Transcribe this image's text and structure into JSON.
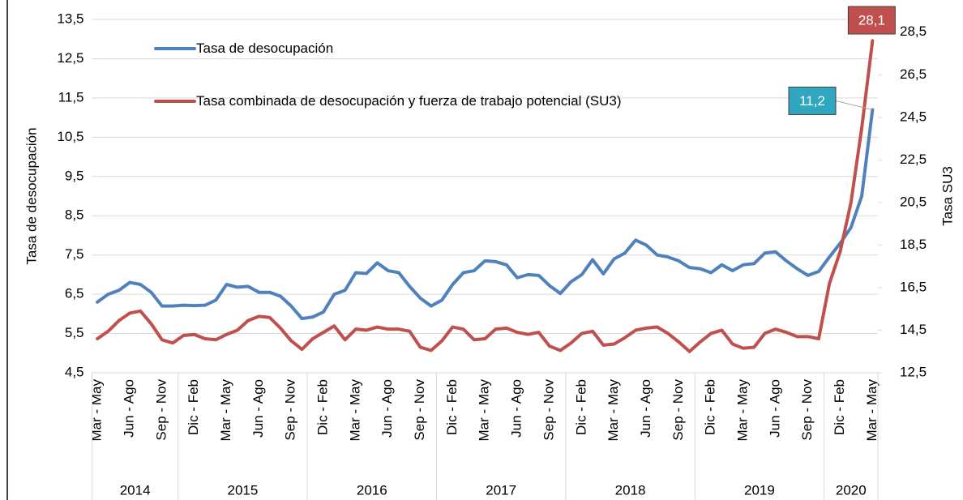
{
  "chart_data": {
    "type": "line",
    "categories": [
      "Mar - May",
      null,
      null,
      "Jun - Ago",
      null,
      null,
      "Sep - Nov",
      null,
      null,
      "Dic - Feb",
      null,
      null,
      "Mar - May",
      null,
      null,
      "Jun - Ago",
      null,
      null,
      "Sep - Nov",
      null,
      null,
      "Dic - Feb",
      null,
      null,
      "Mar - May",
      null,
      null,
      "Jun - Ago",
      null,
      null,
      "Sep - Nov",
      null,
      null,
      "Dic - Feb",
      null,
      null,
      "Mar - May",
      null,
      null,
      "Jun - Ago",
      null,
      null,
      "Sep - Nov",
      null,
      null,
      "Dic - Feb",
      null,
      null,
      "Mar - May",
      null,
      null,
      "Jun - Ago",
      null,
      null,
      "Sep - Nov",
      null,
      null,
      "Dic - Feb",
      null,
      null,
      "Mar - May",
      null,
      null,
      "Jun - Ago",
      null,
      null,
      "Sep - Nov",
      null,
      null,
      "Dic - Feb",
      null,
      null,
      "Mar - May"
    ],
    "groups": [
      {
        "label": "2014",
        "count": 8
      },
      {
        "label": "2015",
        "count": 12
      },
      {
        "label": "2016",
        "count": 12
      },
      {
        "label": "2017",
        "count": 12
      },
      {
        "label": "2018",
        "count": 12
      },
      {
        "label": "2019",
        "count": 12
      },
      {
        "label": "2020",
        "count": 5
      }
    ],
    "series": [
      {
        "name": "Tasa de desocupación",
        "color": "#4f81bd",
        "label_color": "#31a6bf",
        "values": [
          6.3,
          6.5,
          6.6,
          6.8,
          6.75,
          6.55,
          6.2,
          6.2,
          6.22,
          6.21,
          6.22,
          6.35,
          6.75,
          6.68,
          6.7,
          6.55,
          6.55,
          6.45,
          6.2,
          5.88,
          5.92,
          6.05,
          6.5,
          6.6,
          7.05,
          7.03,
          7.3,
          7.1,
          7.05,
          6.7,
          6.4,
          6.2,
          6.35,
          6.75,
          7.05,
          7.1,
          7.35,
          7.33,
          7.25,
          6.92,
          7.0,
          6.98,
          6.72,
          6.52,
          6.82,
          7.0,
          7.38,
          7.02,
          7.4,
          7.55,
          7.88,
          7.75,
          7.5,
          7.45,
          7.35,
          7.18,
          7.15,
          7.05,
          7.25,
          7.1,
          7.25,
          7.28,
          7.55,
          7.58,
          7.35,
          7.15,
          6.98,
          7.08,
          7.45,
          7.8,
          8.2,
          9.0,
          11.2
        ],
        "value_labels": [
          null,
          null,
          null,
          null,
          null,
          null,
          null,
          null,
          null,
          null,
          null,
          null,
          null,
          null,
          null,
          null,
          null,
          null,
          null,
          null,
          null,
          null,
          null,
          null,
          null,
          null,
          null,
          null,
          null,
          null,
          null,
          null,
          null,
          null,
          null,
          null,
          null,
          null,
          null,
          null,
          null,
          null,
          null,
          null,
          null,
          null,
          null,
          null,
          null,
          null,
          null,
          null,
          null,
          null,
          null,
          null,
          null,
          null,
          null,
          null,
          null,
          null,
          null,
          null,
          null,
          null,
          null,
          null,
          null,
          null,
          null,
          null,
          "11,2"
        ]
      },
      {
        "name": "Tasa combinada de desocupación y fuerza de trabajo potencial (SU3)",
        "color": "#c0504d",
        "label_color": "#c0504d",
        "axis": "y2",
        "values": [
          14.1,
          14.45,
          14.95,
          15.3,
          15.4,
          14.8,
          14.05,
          13.9,
          14.25,
          14.3,
          14.1,
          14.05,
          14.3,
          14.5,
          14.95,
          15.15,
          15.1,
          14.6,
          14.0,
          13.6,
          14.1,
          14.4,
          14.7,
          14.05,
          14.55,
          14.5,
          14.65,
          14.55,
          14.55,
          14.45,
          13.7,
          13.55,
          14.0,
          14.65,
          14.55,
          14.05,
          14.1,
          14.55,
          14.6,
          14.4,
          14.3,
          14.4,
          13.75,
          13.55,
          13.9,
          14.35,
          14.45,
          13.8,
          13.85,
          14.15,
          14.5,
          14.6,
          14.65,
          14.35,
          13.95,
          13.5,
          13.95,
          14.35,
          14.5,
          13.85,
          13.65,
          13.7,
          14.35,
          14.55,
          14.4,
          14.2,
          14.2,
          14.1,
          16.7,
          18.2,
          20.5,
          24.0,
          28.1
        ],
        "value_labels": [
          null,
          null,
          null,
          null,
          null,
          null,
          null,
          null,
          null,
          null,
          null,
          null,
          null,
          null,
          null,
          null,
          null,
          null,
          null,
          null,
          null,
          null,
          null,
          null,
          null,
          null,
          null,
          null,
          null,
          null,
          null,
          null,
          null,
          null,
          null,
          null,
          null,
          null,
          null,
          null,
          null,
          null,
          null,
          null,
          null,
          null,
          null,
          null,
          null,
          null,
          null,
          null,
          null,
          null,
          null,
          null,
          null,
          null,
          null,
          null,
          null,
          null,
          null,
          null,
          null,
          null,
          null,
          null,
          null,
          null,
          null,
          null,
          "28,1"
        ]
      }
    ],
    "ylabel": "Tasa de desocupación",
    "y2label": "Tasa SU3",
    "ylim": [
      4.5,
      13.5
    ],
    "yticks": [
      {
        "value": 4.5,
        "label": "4,5"
      },
      {
        "value": 5.5,
        "label": "5,5"
      },
      {
        "value": 6.5,
        "label": "6,5"
      },
      {
        "value": 7.5,
        "label": "7,5"
      },
      {
        "value": 8.5,
        "label": "8,5"
      },
      {
        "value": 9.5,
        "label": "9,5"
      },
      {
        "value": 10.5,
        "label": "10,5"
      },
      {
        "value": 11.5,
        "label": "11,5"
      },
      {
        "value": 12.5,
        "label": "12,5"
      },
      {
        "value": 13.5,
        "label": "13,5"
      }
    ],
    "y2lim": [
      12.5,
      29.1
    ],
    "y2ticks": [
      {
        "value": 12.5,
        "label": "12,5"
      },
      {
        "value": 14.5,
        "label": "14,5"
      },
      {
        "value": 16.5,
        "label": "16,5"
      },
      {
        "value": 18.5,
        "label": "18,5"
      },
      {
        "value": 20.5,
        "label": "20,5"
      },
      {
        "value": 22.5,
        "label": "22,5"
      },
      {
        "value": 24.5,
        "label": "24,5"
      },
      {
        "value": 26.5,
        "label": "26,5"
      },
      {
        "value": 28.5,
        "label": "28,5"
      }
    ],
    "grid": true,
    "legend": "upper left"
  }
}
